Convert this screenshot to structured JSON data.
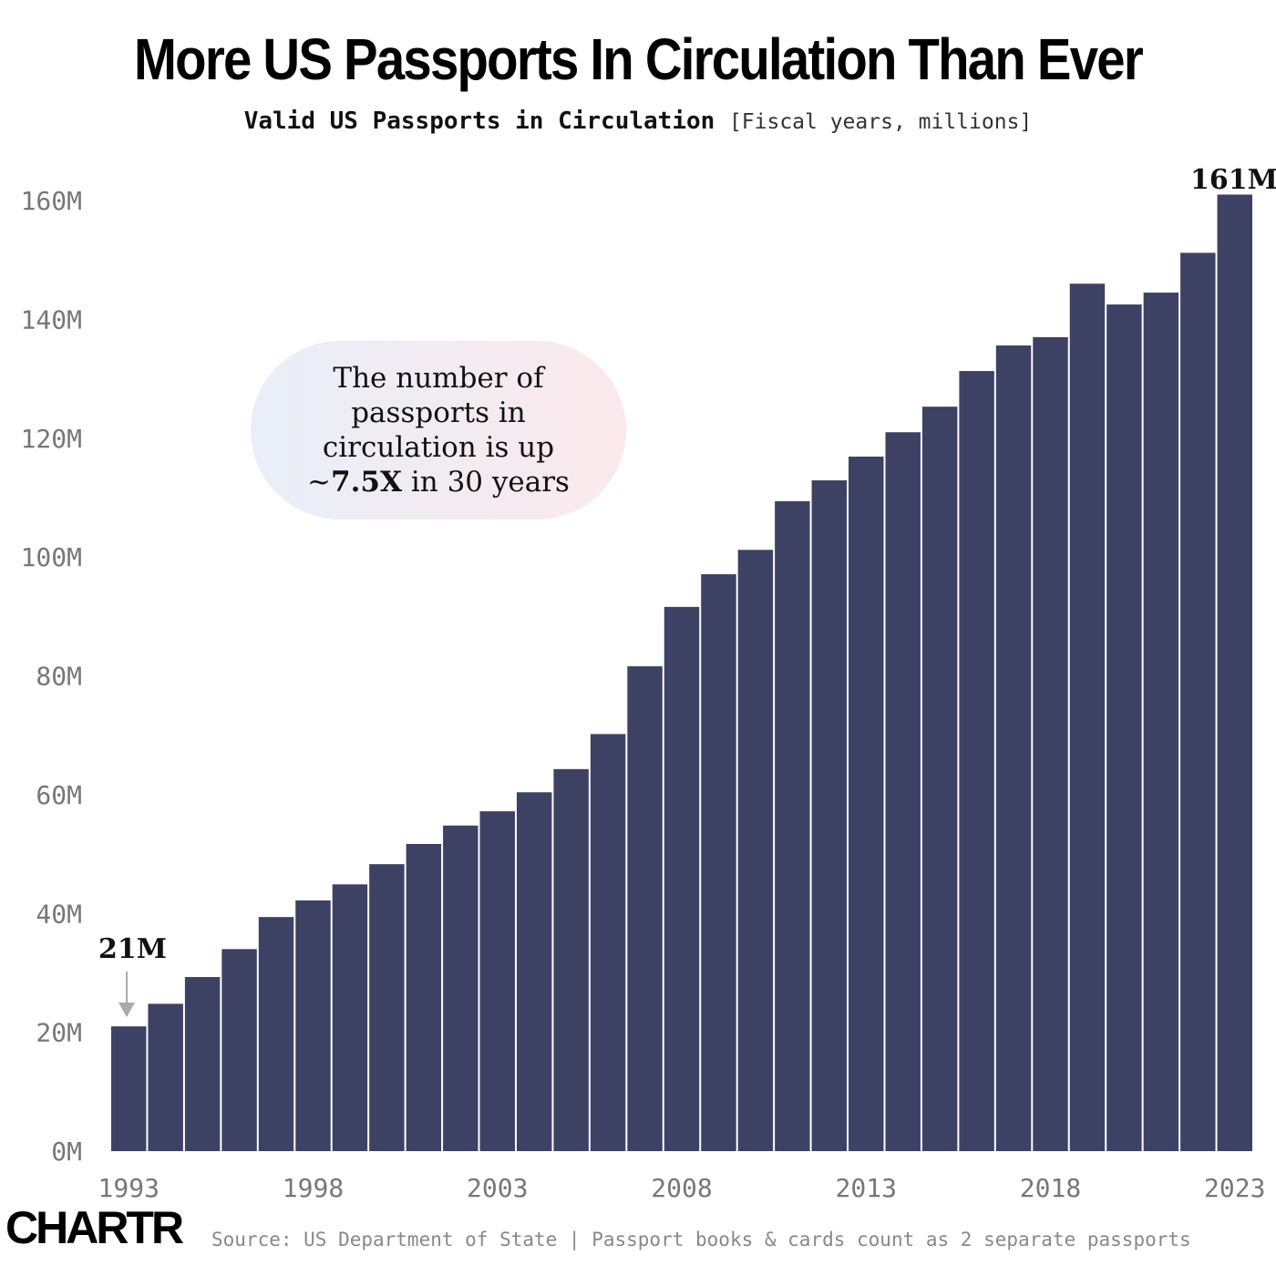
{
  "title": "More US Passports In Circulation Than Ever",
  "subtitle": {
    "main": "Valid US Passports in Circulation",
    "units": "[Fiscal years, millions]"
  },
  "annotation": {
    "line1": "The number of",
    "line2": "passports in",
    "line3": "circulation is up",
    "prefix": "~",
    "bold": "7.5X",
    "suffix": " in 30 years"
  },
  "labels": {
    "first": "21M",
    "last": "161M"
  },
  "logo": "CHARTR",
  "source": "Source: US Department of State | Passport books & cards count as 2 separate passports",
  "chart_data": {
    "type": "bar",
    "title": "Valid US Passports in Circulation",
    "ylabel": "",
    "xlabel": "",
    "ylim": [
      0,
      160
    ],
    "yticks": [
      "0M",
      "20M",
      "40M",
      "60M",
      "80M",
      "100M",
      "120M",
      "140M",
      "160M"
    ],
    "xticks": [
      "1993",
      "1998",
      "2003",
      "2008",
      "2013",
      "2018",
      "2023"
    ],
    "bar_color": "#3d4264",
    "categories": [
      1993,
      1994,
      1995,
      1996,
      1997,
      1998,
      1999,
      2000,
      2001,
      2002,
      2003,
      2004,
      2005,
      2006,
      2007,
      2008,
      2009,
      2010,
      2011,
      2012,
      2013,
      2014,
      2015,
      2016,
      2017,
      2018,
      2019,
      2020,
      2021,
      2022,
      2023
    ],
    "values": [
      21,
      24.8,
      29.3,
      34,
      39.4,
      42.2,
      44.9,
      48.3,
      51.7,
      54.8,
      57.2,
      60.4,
      64.3,
      70.2,
      81.6,
      91.6,
      97.1,
      101.2,
      109.4,
      112.9,
      116.9,
      121,
      125.3,
      131.3,
      135.6,
      137,
      146,
      142.5,
      144.5,
      151.2,
      161
    ]
  }
}
